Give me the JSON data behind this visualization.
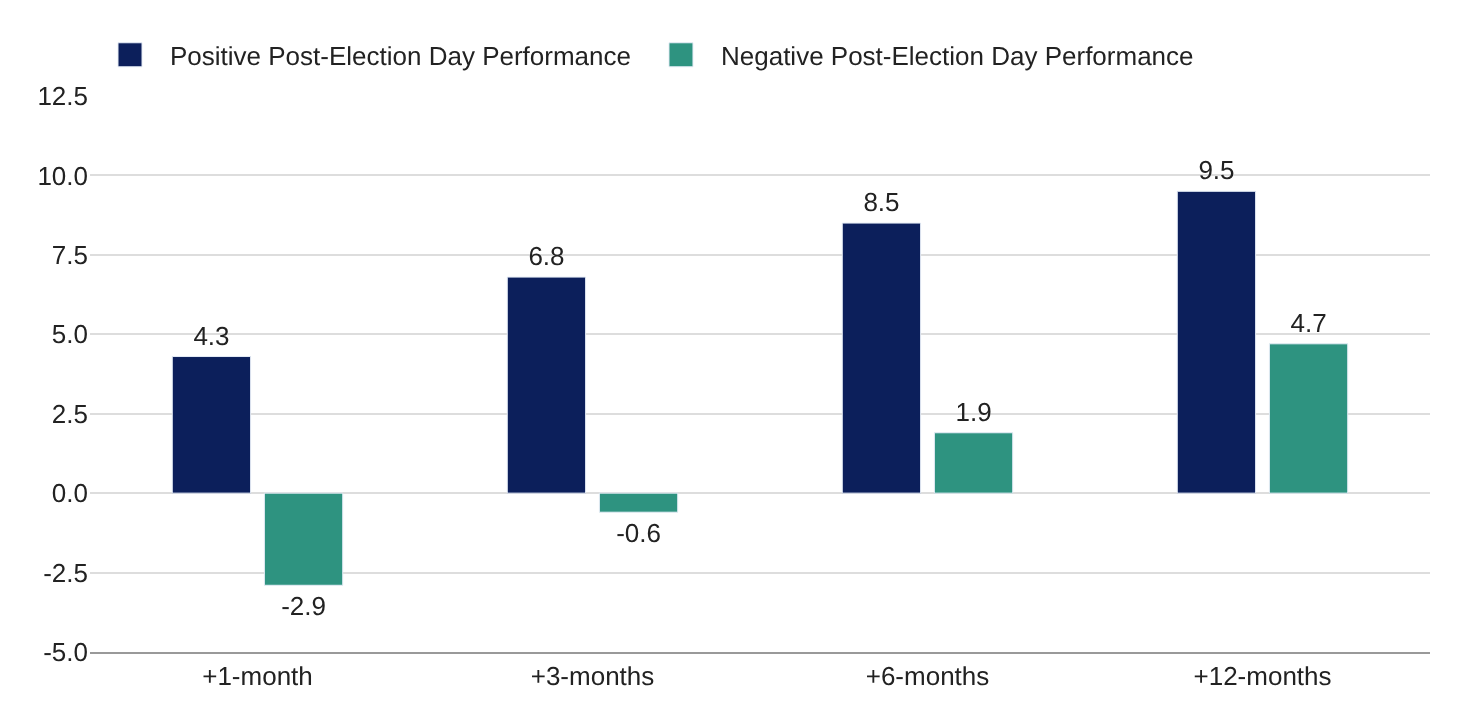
{
  "chart_data": {
    "type": "bar",
    "categories": [
      "+1-month",
      "+3-months",
      "+6-months",
      "+12-months"
    ],
    "series": [
      {
        "name": "Positive Post-Election Day Performance",
        "color": "#0c1f5b",
        "values": [
          4.3,
          6.8,
          8.5,
          9.5
        ]
      },
      {
        "name": "Negative Post-Election Day Performance",
        "color": "#2e9380",
        "values": [
          -2.9,
          -0.6,
          1.9,
          4.7
        ]
      }
    ],
    "ylim": [
      -5,
      12.5
    ],
    "yticks": [
      {
        "value": -5,
        "label": "-5.0"
      },
      -2.5,
      {
        "value": 0,
        "label": "0.0"
      },
      2.5,
      {
        "value": 5,
        "label": "5.0"
      },
      7.5,
      {
        "value": 10,
        "label": "10.0"
      },
      12.5
    ],
    "grid": "y",
    "legend": "top left",
    "data_labels": true
  }
}
